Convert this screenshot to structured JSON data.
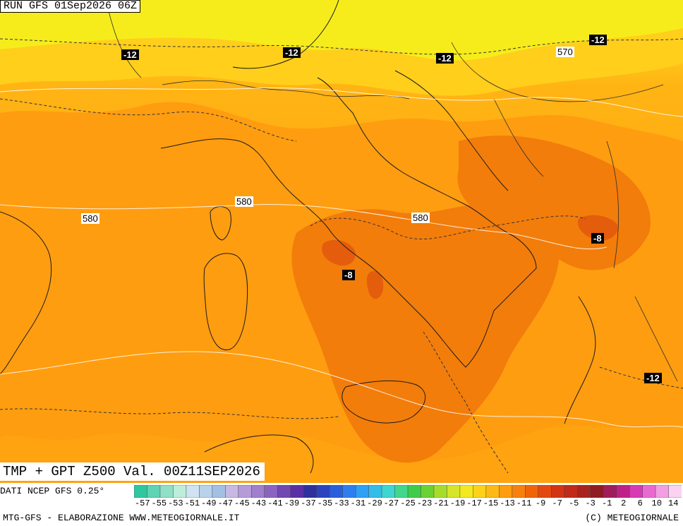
{
  "header": {
    "run_label": "RUN GFS 01Sep2026 06Z"
  },
  "title": "TMP + GPT Z500 Val. 00Z11SEP2026",
  "source": "DATI NCEP GFS 0.25°",
  "footer": {
    "left": "MTG-GFS - ELABORAZIONE WWW.METEOGIORNALE.IT",
    "right": "(C) METEOGIORNALE"
  },
  "temp_labels": [
    "-12",
    "-12",
    "-12",
    "-12",
    "-8",
    "-8",
    "-12"
  ],
  "gpt_labels": [
    "570",
    "580",
    "580",
    "580"
  ],
  "colorbar": {
    "ticks": [
      "-57",
      "-55",
      "-53",
      "-51",
      "-49",
      "-47",
      "-45",
      "-43",
      "-41",
      "-39",
      "-37",
      "-35",
      "-33",
      "-31",
      "-29",
      "-27",
      "-25",
      "-23",
      "-21",
      "-19",
      "-17",
      "-15",
      "-13",
      "-11",
      "-9",
      "-7",
      "-5",
      "-3",
      "-1",
      "2",
      "6",
      "10",
      "14"
    ],
    "colors": [
      "#2fc7a0",
      "#5fd3b3",
      "#8fe0c6",
      "#bdeed9",
      "#cfe3f2",
      "#b8d2ec",
      "#a3bfe4",
      "#c7b8e4",
      "#b59bd8",
      "#a07fcc",
      "#8a64bf",
      "#7248b3",
      "#5a2fa6",
      "#2f2fa0",
      "#2a44c0",
      "#2a5fdc",
      "#2d7ff0",
      "#2ea0f5",
      "#33bde8",
      "#3fd5d0",
      "#42d78c",
      "#3fcc4a",
      "#6bd233",
      "#a7dd2a",
      "#d6e52a",
      "#f2ea1e",
      "#ffd21a",
      "#ffb915",
      "#ff9d10",
      "#f7810c",
      "#ef6409",
      "#e44a10",
      "#d43414",
      "#c02a1a",
      "#a8231e",
      "#8e1c22",
      "#a01c5a",
      "#c01f8a",
      "#d83ab4",
      "#e86ad0",
      "#f39ee2",
      "#fbd2f2"
    ]
  }
}
